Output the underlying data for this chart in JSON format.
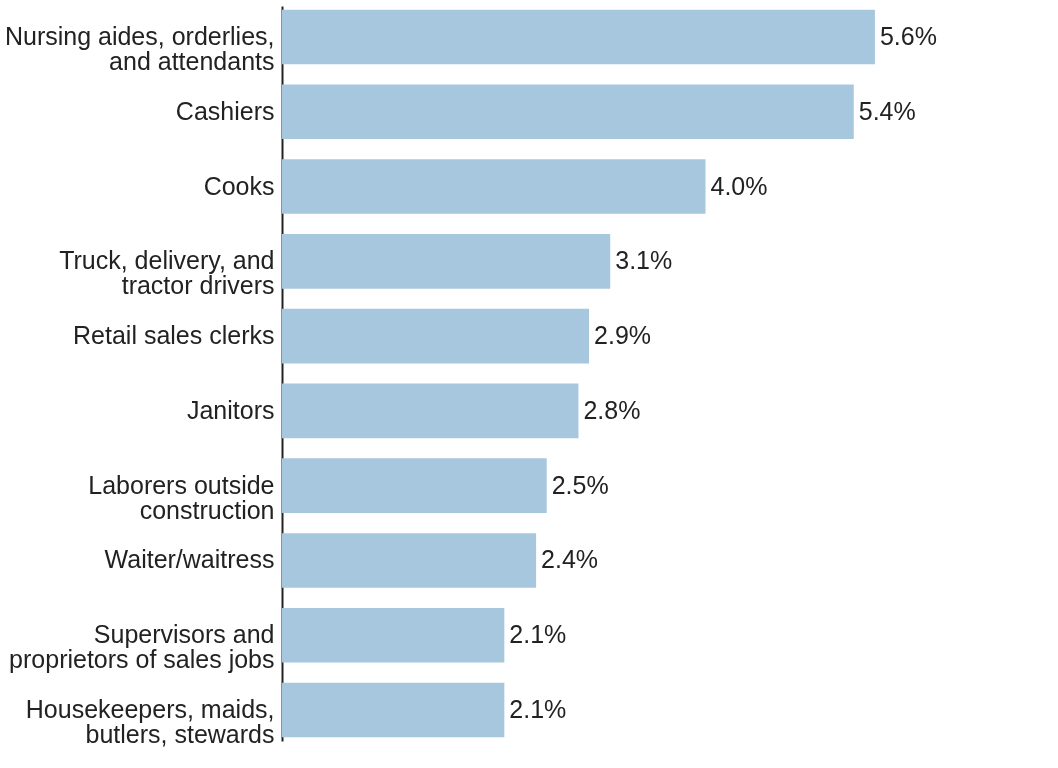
{
  "chart_data": {
    "type": "bar",
    "orientation": "horizontal",
    "color": "#a7c7de",
    "categories": [
      "Nursing aides, orderlies, and attendants",
      "Cashiers",
      "Cooks",
      "Truck, delivery, and tractor drivers",
      "Retail sales clerks",
      "Janitors",
      "Laborers outside construction",
      "Waiter/waitress",
      "Supervisors and proprietors of sales jobs",
      "Housekeepers, maids, butlers, stewards"
    ],
    "values": [
      5.6,
      5.4,
      4.0,
      3.1,
      2.9,
      2.8,
      2.5,
      2.4,
      2.1,
      2.1
    ],
    "value_labels": [
      "5.6%",
      "5.4%",
      "4.0%",
      "3.1%",
      "2.9%",
      "2.8%",
      "2.5%",
      "2.4%",
      "2.1%",
      "2.1%"
    ]
  }
}
